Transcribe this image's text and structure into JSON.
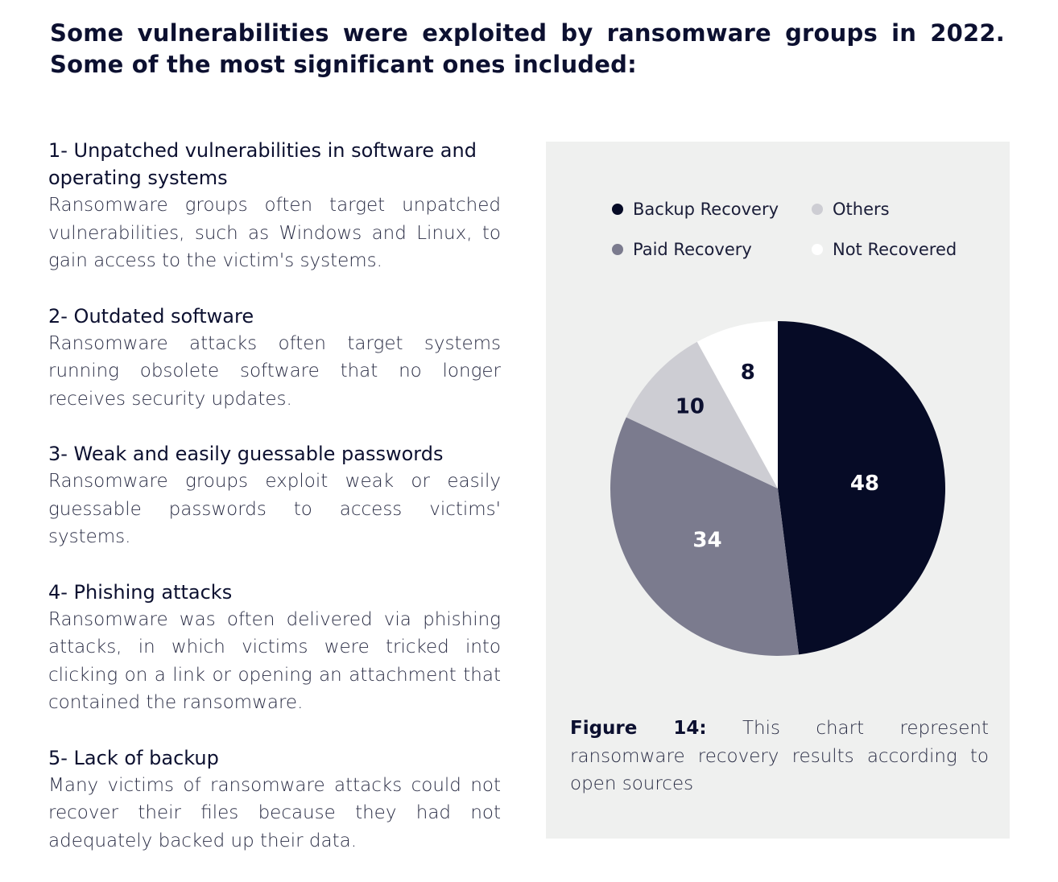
{
  "title": "Some vulnerabilities were exploited by ransomware groups in 2022. Some of the most significant ones included:",
  "items": [
    {
      "heading": "1- Unpatched vulnerabilities in software and operating systems",
      "body": "Ransomware groups often target unpatched vulnerabilities, such as Windows and Linux, to gain access to the victim's systems."
    },
    {
      "heading": "2- Outdated software",
      "body": "Ransomware attacks often target systems running obsolete software that no longer receives security updates."
    },
    {
      "heading": "3- Weak and easily guessable passwords",
      "body": "Ransomware groups exploit weak or easily guessable passwords to access victims' systems."
    },
    {
      "heading": "4- Phishing attacks",
      "body": "Ransomware was often delivered via phishing attacks, in which victims were tricked into clicking on a link or opening an attachment that contained the ransomware."
    },
    {
      "heading": "5- Lack of backup",
      "body": "Many victims of ransomware attacks could not recover their files because they had not adequately backed up their data."
    }
  ],
  "chart_data": {
    "type": "pie",
    "slices": [
      {
        "label": "Backup Recovery",
        "value": 48,
        "color": "#060b26",
        "label_color": "#ffffff"
      },
      {
        "label": "Paid Recovery",
        "value": 34,
        "color": "#7b7b8e",
        "label_color": "#ffffff"
      },
      {
        "label": "Others",
        "value": 10,
        "color": "#cdcdd3",
        "label_color": "#0c1030"
      },
      {
        "label": "Not Recovered",
        "value": 8,
        "color": "#ffffff",
        "label_color": "#0c1030"
      }
    ],
    "order": "clockwise from top",
    "legend_placement": "top"
  },
  "caption": {
    "label": "Figure 14:",
    "text": " This chart represent ransomware recovery results according to open sources"
  }
}
